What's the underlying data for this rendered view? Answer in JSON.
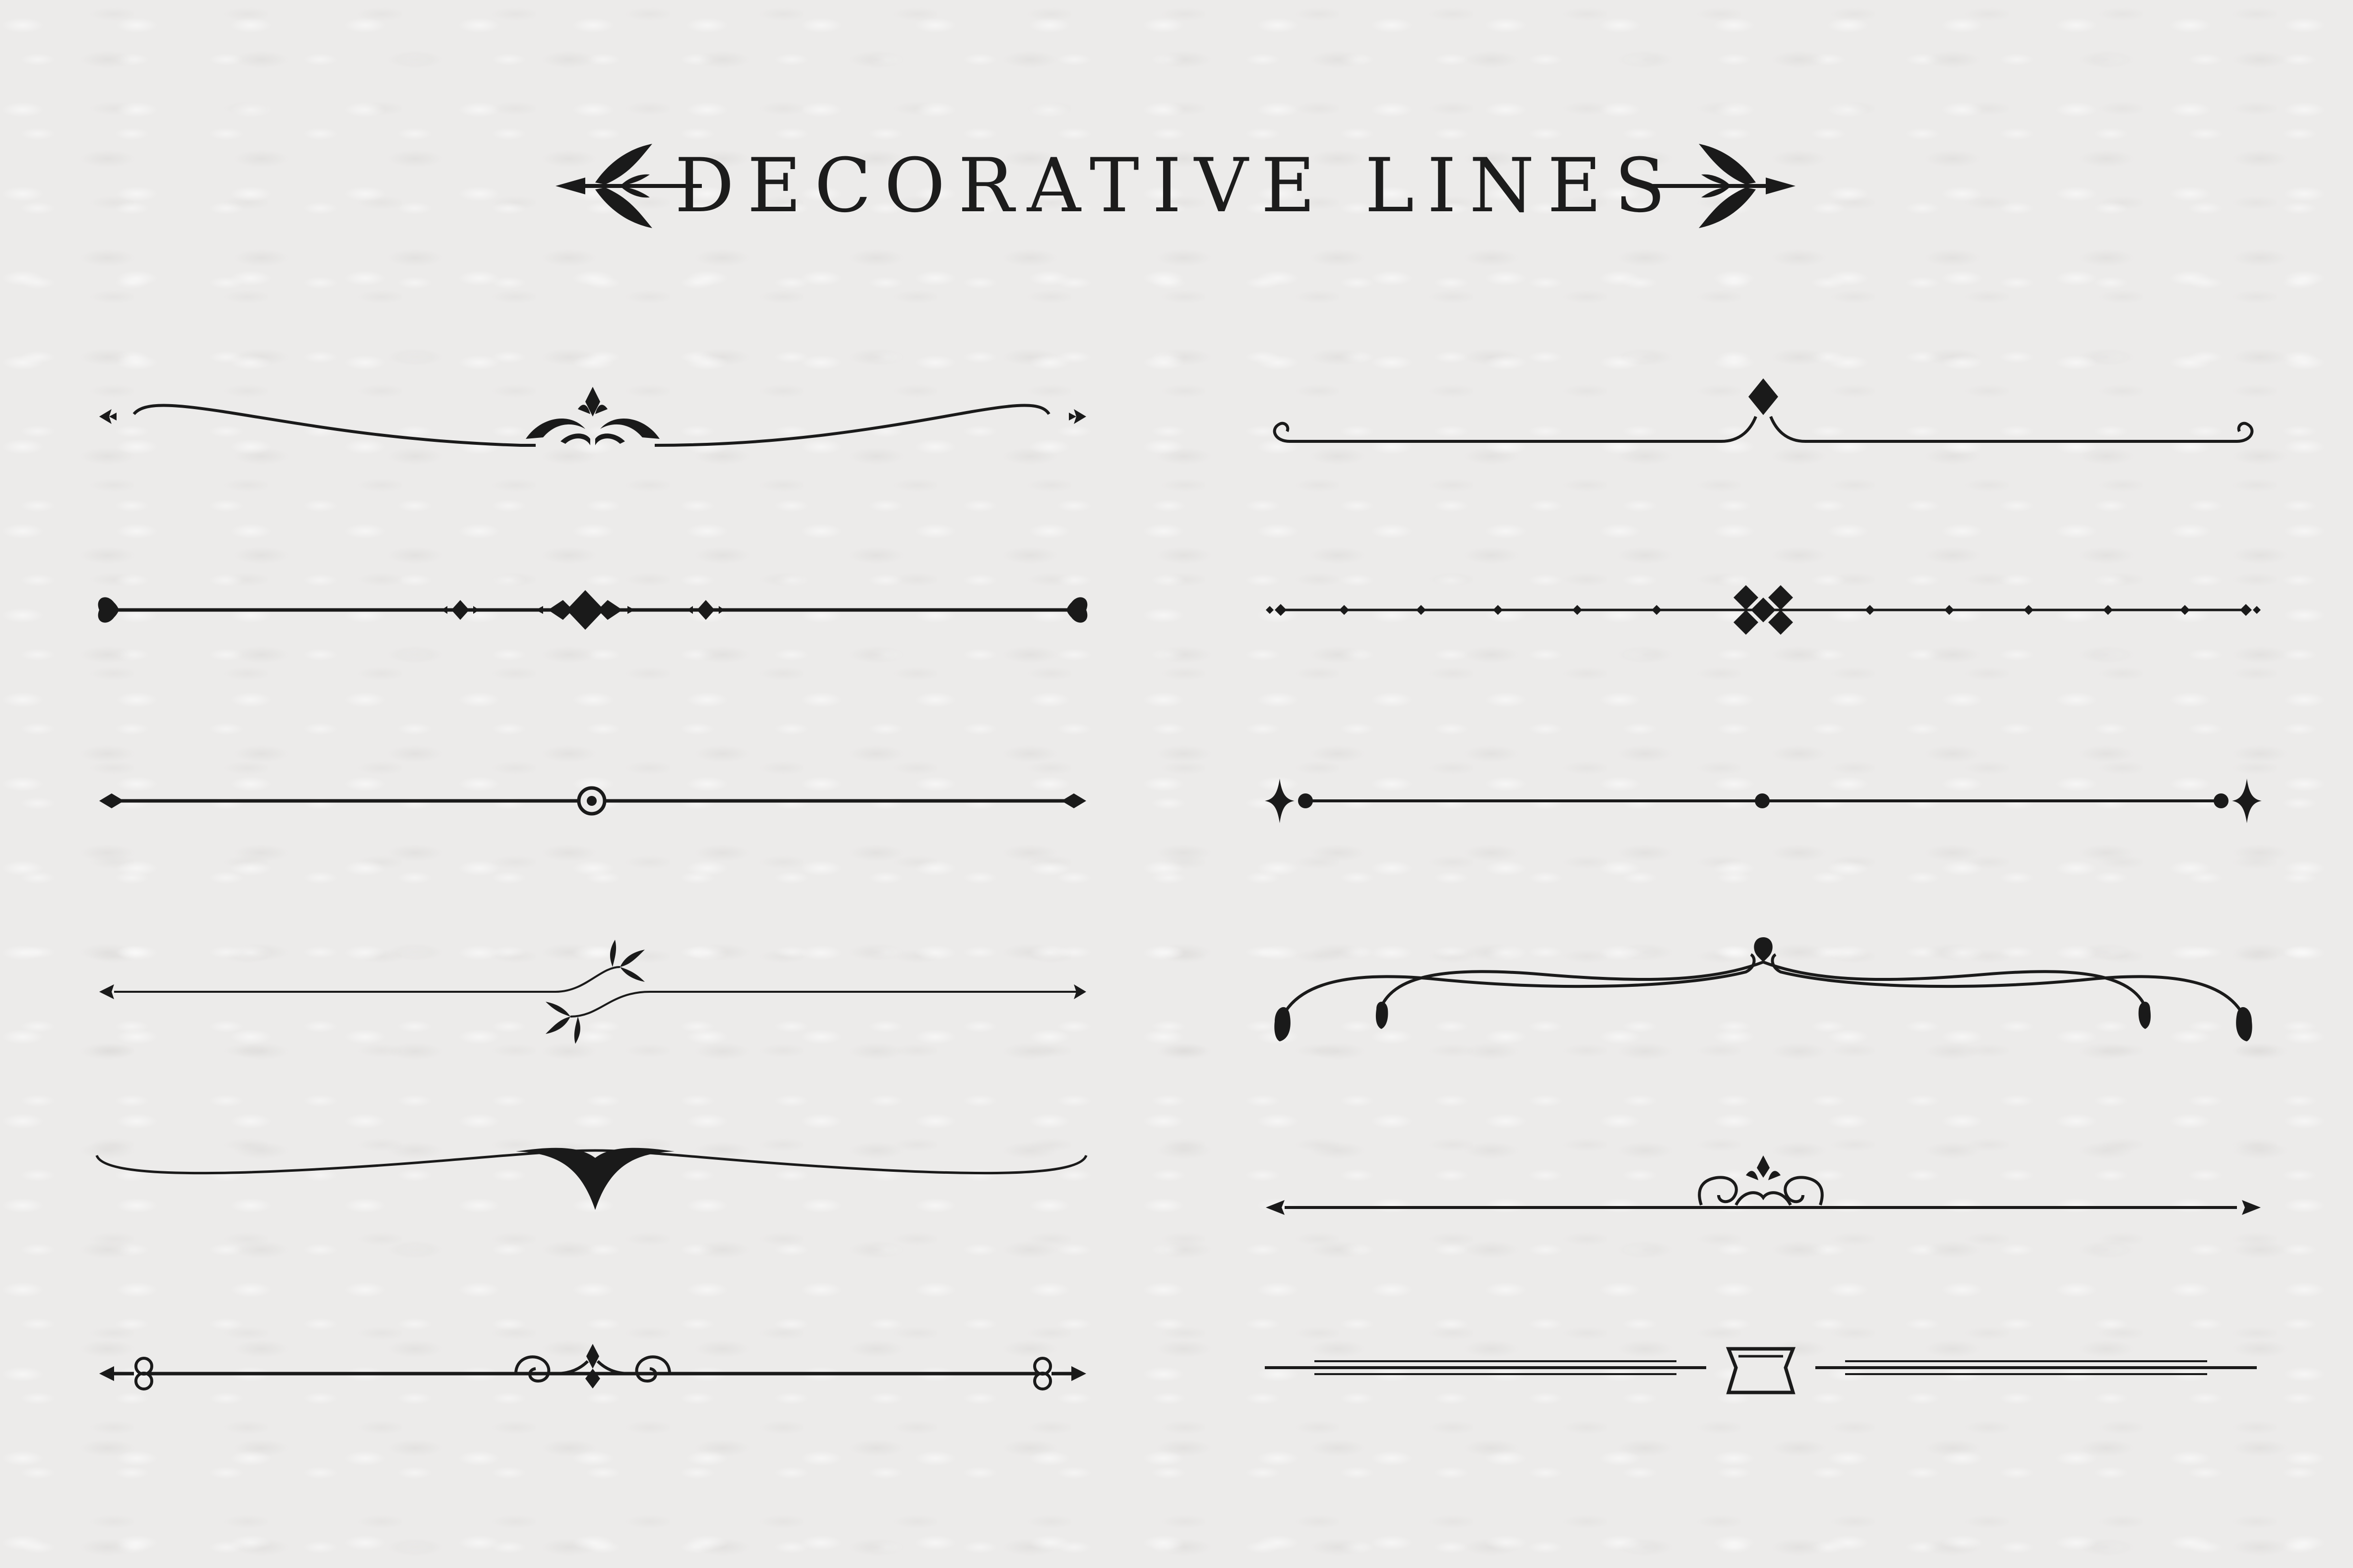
{
  "title": "DECORATIVE LINES",
  "colors": {
    "background": "#ecebea",
    "ink": "#1a1a1a"
  },
  "dividers": {
    "left": [
      "swash-crown-divider",
      "heart-diamond-divider",
      "circle-center-divider",
      "split-leaf-divider",
      "tapered-swoop-divider",
      "scroll-key-divider"
    ],
    "right": [
      "diamond-arch-divider",
      "diamond-cluster-dotted-divider",
      "dot-star-divider",
      "teardrop-swag-divider",
      "swirl-crown-arrow-divider",
      "ribbon-double-rule-divider"
    ]
  }
}
